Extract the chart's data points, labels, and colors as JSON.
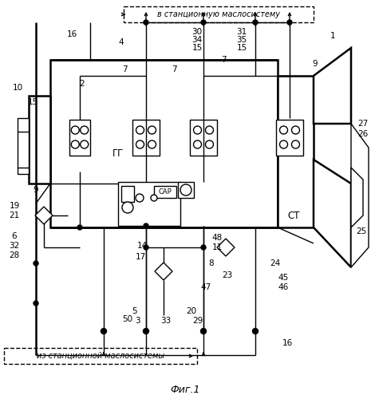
{
  "bg_color": "#ffffff",
  "line_color": "#000000",
  "text_color": "#000000",
  "title_top": "в станционную маслосистему",
  "title_bottom": "из станционной маслосистемы",
  "fig_label": "Фиг.1",
  "lw": 1.0,
  "lw_thick": 1.8
}
